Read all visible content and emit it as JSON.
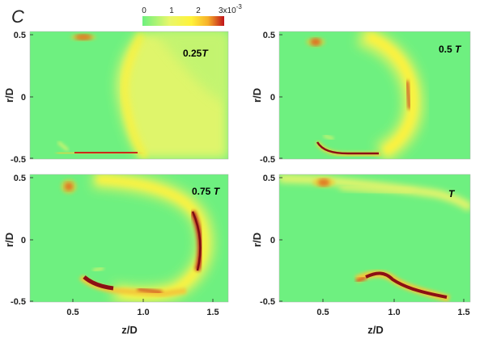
{
  "panel_letter": "C",
  "colorbar": {
    "ticks": [
      "0",
      "1",
      "2"
    ],
    "max_label": "3x10",
    "max_exponent": "-3",
    "stops": [
      "#6df07f",
      "#e9f76a",
      "#fff23a",
      "#f7b12a",
      "#c0131a"
    ],
    "range": [
      0,
      0.003
    ]
  },
  "chart_data": {
    "type": "heatmap",
    "xlabel": "z/D",
    "ylabel": "r/D",
    "x_ticks": [
      "0.5",
      "1.0",
      "1.5"
    ],
    "y_ticks": [
      "0.5",
      "0",
      "-0.5"
    ],
    "x_tick_values": [
      0.5,
      1.0,
      1.5
    ],
    "y_tick_values": [
      0.5,
      0,
      -0.5
    ],
    "xlim": [
      0.2,
      1.6
    ],
    "ylim": [
      -0.52,
      0.52
    ],
    "panels": [
      {
        "time": "0.25",
        "time_italic": "T",
        "ring_z": 1.06,
        "ring_width": 0.55
      },
      {
        "time": "0.5 ",
        "time_italic": "T",
        "ring_z": 1.38,
        "ring_width": 0.18
      },
      {
        "time": "0.75 ",
        "time_italic": "T",
        "ring_z": 1.48,
        "ring_width": 0.14
      },
      {
        "time": "",
        "time_italic": "T",
        "ring_z": 1.72,
        "ring_width": 0.1
      }
    ]
  }
}
